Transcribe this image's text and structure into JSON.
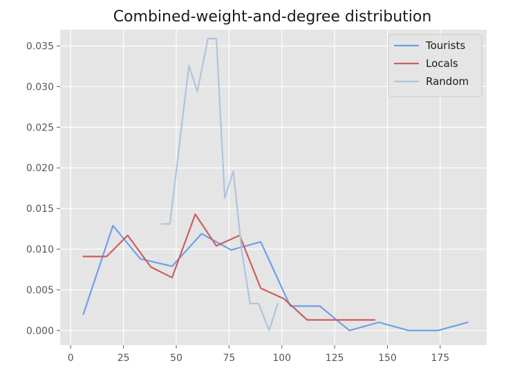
{
  "chart_data": {
    "type": "line",
    "title": "Combined-weight-and-degree distribution",
    "xlabel": "",
    "ylabel": "",
    "xlim": [
      -5,
      197
    ],
    "ylim": [
      -0.0018,
      0.037
    ],
    "xticks": [
      0,
      25,
      50,
      75,
      100,
      125,
      150,
      175
    ],
    "yticks": [
      0.0,
      0.005,
      0.01,
      0.015,
      0.02,
      0.025,
      0.03,
      0.035
    ],
    "xtick_labels": [
      "0",
      "25",
      "50",
      "75",
      "100",
      "125",
      "150",
      "175"
    ],
    "ytick_labels": [
      "0.000",
      "0.005",
      "0.010",
      "0.015",
      "0.020",
      "0.025",
      "0.030",
      "0.035"
    ],
    "grid": true,
    "legend_position": "top-right",
    "series": [
      {
        "name": "Tourists",
        "color": "#6d9eeb",
        "x": [
          6,
          20,
          33,
          48,
          62,
          76,
          90,
          104,
          118,
          132,
          146,
          160,
          174,
          188
        ],
        "y": [
          0.002,
          0.0129,
          0.0088,
          0.0079,
          0.0119,
          0.0099,
          0.0109,
          0.003,
          0.003,
          0.0,
          0.001,
          0.0,
          0.0,
          0.001
        ]
      },
      {
        "name": "Locals",
        "color": "#cd5c5c",
        "x": [
          6,
          17,
          27,
          38,
          48,
          59,
          69,
          80,
          90,
          101,
          112,
          122,
          133,
          144
        ],
        "y": [
          0.0091,
          0.0091,
          0.0117,
          0.0078,
          0.0065,
          0.0143,
          0.0104,
          0.0117,
          0.0052,
          0.0039,
          0.0013,
          0.0013,
          0.0013,
          0.0013
        ]
      },
      {
        "name": "Random",
        "color": "#adc4e0",
        "x": [
          43,
          47,
          56,
          60,
          65,
          69,
          73,
          77,
          81,
          85,
          89,
          94,
          98
        ],
        "y": [
          0.0131,
          0.0131,
          0.0326,
          0.0294,
          0.0359,
          0.0359,
          0.0163,
          0.0196,
          0.0098,
          0.0033,
          0.0033,
          0.0,
          0.0033
        ]
      }
    ]
  }
}
